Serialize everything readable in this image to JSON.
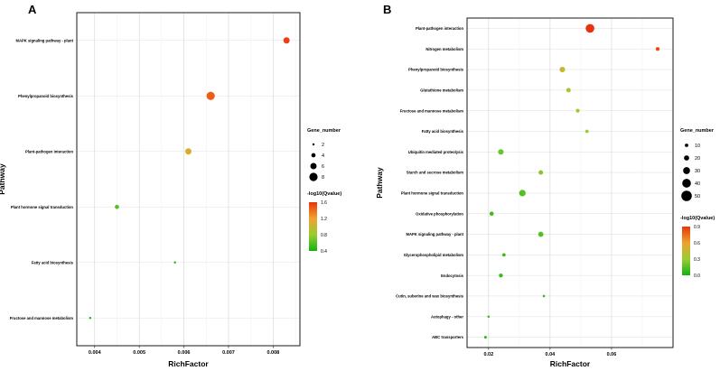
{
  "figure": {
    "background": "#ffffff"
  },
  "chart_data": [
    {
      "type": "scatter",
      "panel_label": "A",
      "title": "",
      "xlabel": "RichFactor",
      "ylabel": "Pathway",
      "xlim": [
        0.0036,
        0.0086
      ],
      "xtick_labels": [
        "0.004",
        "0.005",
        "0.006",
        "0.007",
        "0.008"
      ],
      "grid": true,
      "legend_position": "right",
      "categories": [
        "MAPK signaling pathway - plant",
        "Phenylpropanoid biosynthesis",
        "Plant-pathogen interaction",
        "Plant hormone signal transduction",
        "Fatty acid biosynthesis",
        "Fructose and mannose metabolism"
      ],
      "points": [
        {
          "pathway": "MAPK signaling pathway - plant",
          "rich_factor": 0.0083,
          "gene_number": 6,
          "neg_log10_qvalue": 1.55
        },
        {
          "pathway": "Phenylpropanoid biosynthesis",
          "rich_factor": 0.0066,
          "gene_number": 8,
          "neg_log10_qvalue": 1.45
        },
        {
          "pathway": "Plant-pathogen interaction",
          "rich_factor": 0.0061,
          "gene_number": 6,
          "neg_log10_qvalue": 1.1
        },
        {
          "pathway": "Plant hormone signal transduction",
          "rich_factor": 0.0045,
          "gene_number": 4,
          "neg_log10_qvalue": 0.6
        },
        {
          "pathway": "Fatty acid biosynthesis",
          "rich_factor": 0.0058,
          "gene_number": 2,
          "neg_log10_qvalue": 0.45
        },
        {
          "pathway": "Fructose and mannose metabolism",
          "rich_factor": 0.0039,
          "gene_number": 2,
          "neg_log10_qvalue": 0.4
        }
      ],
      "legend": {
        "size_title": "Gene_number",
        "size_values": [
          2,
          4,
          6,
          8
        ],
        "color_title": "-log10(Qvalue)",
        "color_tick_labels": [
          "0.4",
          "0.8",
          "1.2",
          "1.6"
        ],
        "color_domain": [
          0.4,
          1.6
        ]
      },
      "color_stops": [
        "#12b212",
        "#9acd32",
        "#f0a22e",
        "#e8340c"
      ]
    },
    {
      "type": "scatter",
      "panel_label": "B",
      "title": "",
      "xlabel": "RichFactor",
      "ylabel": "Pathway",
      "xlim": [
        0.013,
        0.08
      ],
      "xtick_labels": [
        "0.02",
        "0.04",
        "0.06"
      ],
      "grid": true,
      "legend_position": "right",
      "categories": [
        "Plant-pathogen interaction",
        "Nitrogen metabolism",
        "Phenylpropanoid biosynthesis",
        "Glutathione metabolism",
        "Fructose and mannose metabolism",
        "Fatty acid biosynthesis",
        "Ubiquitin mediated proteolysis",
        "Starch and sucrose metabolism",
        "Plant hormone signal transduction",
        "Oxidative phosphorylation",
        "MAPK signaling pathway - plant",
        "Glycerophospholipid metabolism",
        "Endocytosis",
        "Cutin, suberine and wax biosynthesis",
        "Autophagy - other",
        "ABC transporters"
      ],
      "points": [
        {
          "pathway": "Plant-pathogen interaction",
          "rich_factor": 0.053,
          "gene_number": 40,
          "neg_log10_qvalue": 0.95
        },
        {
          "pathway": "Nitrogen metabolism",
          "rich_factor": 0.075,
          "gene_number": 12,
          "neg_log10_qvalue": 0.85
        },
        {
          "pathway": "Phenylpropanoid biosynthesis",
          "rich_factor": 0.044,
          "gene_number": 22,
          "neg_log10_qvalue": 0.45
        },
        {
          "pathway": "Glutathione metabolism",
          "rich_factor": 0.046,
          "gene_number": 16,
          "neg_log10_qvalue": 0.35
        },
        {
          "pathway": "Fructose and mannose metabolism",
          "rich_factor": 0.049,
          "gene_number": 12,
          "neg_log10_qvalue": 0.3
        },
        {
          "pathway": "Fatty acid biosynthesis",
          "rich_factor": 0.052,
          "gene_number": 10,
          "neg_log10_qvalue": 0.3
        },
        {
          "pathway": "Ubiquitin mediated proteolysis",
          "rich_factor": 0.024,
          "gene_number": 22,
          "neg_log10_qvalue": 0.2
        },
        {
          "pathway": "Starch and sucrose metabolism",
          "rich_factor": 0.037,
          "gene_number": 16,
          "neg_log10_qvalue": 0.25
        },
        {
          "pathway": "Plant hormone signal transduction",
          "rich_factor": 0.031,
          "gene_number": 28,
          "neg_log10_qvalue": 0.15
        },
        {
          "pathway": "Oxidative phosphorylation",
          "rich_factor": 0.021,
          "gene_number": 14,
          "neg_log10_qvalue": 0.1
        },
        {
          "pathway": "MAPK signaling pathway - plant",
          "rich_factor": 0.037,
          "gene_number": 20,
          "neg_log10_qvalue": 0.15
        },
        {
          "pathway": "Glycerophospholipid metabolism",
          "rich_factor": 0.025,
          "gene_number": 10,
          "neg_log10_qvalue": 0.1
        },
        {
          "pathway": "Endocytosis",
          "rich_factor": 0.024,
          "gene_number": 13,
          "neg_log10_qvalue": 0.1
        },
        {
          "pathway": "Cutin, suberine and wax biosynthesis",
          "rich_factor": 0.038,
          "gene_number": 4,
          "neg_log10_qvalue": 0.1
        },
        {
          "pathway": "Autophagy - other",
          "rich_factor": 0.02,
          "gene_number": 4,
          "neg_log10_qvalue": 0.1
        },
        {
          "pathway": "ABC transporters",
          "rich_factor": 0.019,
          "gene_number": 6,
          "neg_log10_qvalue": 0.05
        }
      ],
      "legend": {
        "size_title": "Gene_number",
        "size_values": [
          10,
          20,
          30,
          40,
          50
        ],
        "color_title": "-log10(Qvalue)",
        "color_tick_labels": [
          "0.0",
          "0.3",
          "0.6",
          "0.9"
        ],
        "color_domain": [
          0.0,
          0.9
        ]
      },
      "color_stops": [
        "#12b212",
        "#9acd32",
        "#f0a22e",
        "#e8340c"
      ]
    }
  ]
}
